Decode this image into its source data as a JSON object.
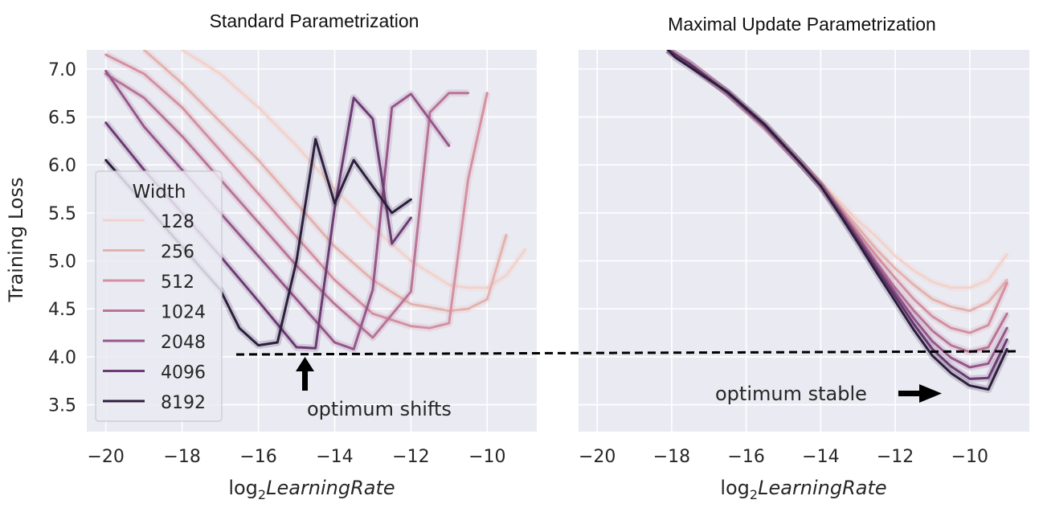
{
  "chart_data": [
    {
      "type": "line",
      "title": "Standard Parametrization",
      "xlabel_prefix": "log",
      "xlabel_sub": "2",
      "xlabel_main": "LearningRate",
      "ylabel": "Training Loss",
      "xlim": [
        -20.5,
        -8.7
      ],
      "ylim": [
        3.22,
        7.2
      ],
      "xticks": [
        -20,
        -18,
        -16,
        -14,
        -12,
        -10
      ],
      "xtick_labels": [
        "−20",
        "−18",
        "−16",
        "−14",
        "−12",
        "−10"
      ],
      "yticks": [
        3.5,
        4.0,
        4.5,
        5.0,
        5.5,
        6.0,
        6.5,
        7.0
      ],
      "ytick_labels": [
        "3.5",
        "4.0",
        "4.5",
        "5.0",
        "5.5",
        "6.0",
        "6.5",
        "7.0"
      ],
      "legend": {
        "title": "Width",
        "location": "lower-left"
      },
      "series": [
        {
          "name": "128",
          "color": "#f2d3cb",
          "x": [
            -18,
            -17,
            -16,
            -15,
            -14,
            -13,
            -12,
            -11,
            -10.5,
            -10,
            -9.5,
            -9
          ],
          "y": [
            7.2,
            6.95,
            6.6,
            6.2,
            5.75,
            5.35,
            5.0,
            4.75,
            4.72,
            4.72,
            4.85,
            5.12
          ]
        },
        {
          "name": "256",
          "color": "#e4b2ae",
          "x": [
            -19,
            -18,
            -17,
            -16,
            -15,
            -14,
            -13,
            -12,
            -11,
            -10.5,
            -10,
            -9.5
          ],
          "y": [
            7.2,
            6.85,
            6.45,
            6.05,
            5.6,
            5.15,
            4.8,
            4.55,
            4.48,
            4.5,
            4.6,
            5.27
          ]
        },
        {
          "name": "512",
          "color": "#d490a1",
          "x": [
            -20,
            -19,
            -18,
            -17,
            -16,
            -15,
            -14,
            -13,
            -12,
            -11.5,
            -11,
            -10.5,
            -10
          ],
          "y": [
            7.15,
            6.95,
            6.6,
            6.15,
            5.7,
            5.25,
            4.8,
            4.45,
            4.32,
            4.3,
            4.35,
            5.85,
            6.75
          ]
        },
        {
          "name": "1024",
          "color": "#b97496",
          "x": [
            -20,
            -19,
            -18,
            -17,
            -16,
            -15,
            -14,
            -13,
            -12,
            -11.5,
            -11,
            -10.5
          ],
          "y": [
            6.95,
            6.7,
            6.3,
            5.85,
            5.4,
            4.95,
            4.55,
            4.2,
            4.68,
            6.55,
            6.75,
            6.75
          ]
        },
        {
          "name": "2048",
          "color": "#96578a",
          "x": [
            -20,
            -19,
            -18,
            -17,
            -16,
            -15,
            -14,
            -13.5,
            -13,
            -12.5,
            -12,
            -11
          ],
          "y": [
            6.98,
            6.4,
            5.95,
            5.5,
            5.05,
            4.6,
            4.15,
            4.08,
            4.7,
            6.6,
            6.74,
            6.2
          ]
        },
        {
          "name": "4096",
          "color": "#6c3b73",
          "x": [
            -20,
            -19,
            -18,
            -17,
            -16,
            -15,
            -14.5,
            -14,
            -13.5,
            -13,
            -12.5,
            -12
          ],
          "y": [
            6.44,
            5.95,
            5.5,
            5.05,
            4.58,
            4.1,
            4.09,
            5.55,
            6.7,
            6.48,
            5.18,
            5.45
          ]
        },
        {
          "name": "8192",
          "color": "#2d1e3e",
          "x": [
            -20,
            -19,
            -18,
            -17,
            -16.5,
            -16,
            -15.5,
            -15,
            -14.5,
            -14,
            -13.5,
            -12.5,
            -12
          ],
          "y": [
            6.05,
            5.6,
            5.15,
            4.7,
            4.3,
            4.12,
            4.15,
            5.0,
            6.27,
            5.6,
            6.05,
            5.5,
            5.64
          ]
        }
      ]
    },
    {
      "type": "line",
      "title": "Maximal Update Parametrization",
      "xlabel_prefix": "log",
      "xlabel_sub": "2",
      "xlabel_main": "LearningRate",
      "xlim": [
        -20.5,
        -8.4
      ],
      "ylim": [
        3.22,
        7.2
      ],
      "xticks": [
        -20,
        -18,
        -16,
        -14,
        -12,
        -10
      ],
      "xtick_labels": [
        "−20",
        "−18",
        "−16",
        "−14",
        "−12",
        "−10"
      ],
      "series": [
        {
          "name": "128",
          "color": "#f2d3cb",
          "x": [
            -18.1,
            -17.5,
            -16.5,
            -15.5,
            -14.5,
            -14,
            -13.5,
            -13,
            -12.5,
            -12,
            -11.5,
            -11,
            -10.5,
            -10,
            -9.5,
            -9
          ],
          "y": [
            7.2,
            7.05,
            6.75,
            6.4,
            6.0,
            5.82,
            5.62,
            5.42,
            5.25,
            5.05,
            4.9,
            4.78,
            4.72,
            4.72,
            4.8,
            5.07
          ]
        },
        {
          "name": "256",
          "color": "#e4b2ae",
          "x": [
            -18.1,
            -17.5,
            -16.5,
            -15.5,
            -14.5,
            -14,
            -13.5,
            -13,
            -12.5,
            -12,
            -11.5,
            -11,
            -10.5,
            -10,
            -9.5,
            -9
          ],
          "y": [
            7.2,
            7.05,
            6.75,
            6.4,
            6.0,
            5.8,
            5.58,
            5.35,
            5.12,
            4.92,
            4.75,
            4.6,
            4.52,
            4.48,
            4.57,
            4.8
          ]
        },
        {
          "name": "512",
          "color": "#d490a1",
          "x": [
            -18.1,
            -17.5,
            -16.5,
            -15.5,
            -14.5,
            -14,
            -13.5,
            -13,
            -12.5,
            -12,
            -11.5,
            -11,
            -10.5,
            -10,
            -9.5,
            -9
          ],
          "y": [
            7.2,
            7.05,
            6.75,
            6.4,
            6.0,
            5.79,
            5.55,
            5.3,
            5.05,
            4.82,
            4.6,
            4.42,
            4.3,
            4.25,
            4.33,
            4.77
          ]
        },
        {
          "name": "1024",
          "color": "#b97496",
          "x": [
            -18.1,
            -17.5,
            -16.5,
            -15.5,
            -14.5,
            -14,
            -13.5,
            -13,
            -12.5,
            -12,
            -11.5,
            -11,
            -10.5,
            -10,
            -9.5,
            -9
          ],
          "y": [
            7.2,
            7.05,
            6.75,
            6.4,
            6.0,
            5.79,
            5.53,
            5.26,
            4.98,
            4.72,
            4.48,
            4.27,
            4.12,
            4.05,
            4.1,
            4.45
          ]
        },
        {
          "name": "2048",
          "color": "#96578a",
          "x": [
            -18.1,
            -17.5,
            -16.5,
            -15.5,
            -14.5,
            -14,
            -13.5,
            -13,
            -12.5,
            -12,
            -11.5,
            -11,
            -10.5,
            -10,
            -9.5,
            -9
          ],
          "y": [
            7.2,
            7.05,
            6.75,
            6.4,
            6.0,
            5.78,
            5.52,
            5.24,
            4.95,
            4.67,
            4.4,
            4.16,
            3.99,
            3.89,
            3.93,
            4.3
          ]
        },
        {
          "name": "4096",
          "color": "#6c3b73",
          "x": [
            -18.1,
            -17.5,
            -16.5,
            -15.5,
            -14.5,
            -14,
            -13.5,
            -13,
            -12.5,
            -12,
            -11.5,
            -11,
            -10.5,
            -10,
            -9.5,
            -9
          ],
          "y": [
            7.2,
            7.05,
            6.75,
            6.42,
            6.0,
            5.78,
            5.5,
            5.21,
            4.92,
            4.63,
            4.34,
            4.08,
            3.9,
            3.77,
            3.78,
            4.18
          ]
        },
        {
          "name": "8192",
          "color": "#2d1e3e",
          "x": [
            -18.1,
            -17.9,
            -16.5,
            -15.5,
            -14.5,
            -14,
            -13.5,
            -13,
            -12.5,
            -12,
            -11.5,
            -11,
            -10.5,
            -10,
            -9.5,
            -9
          ],
          "y": [
            7.2,
            7.12,
            6.76,
            6.42,
            6.0,
            5.78,
            5.49,
            5.19,
            4.88,
            4.58,
            4.28,
            4.01,
            3.83,
            3.7,
            3.66,
            4.08
          ]
        }
      ]
    }
  ],
  "annotations": {
    "left": "optimum shifts",
    "right": "optimum stable"
  },
  "reference_line": {
    "y": 4.02,
    "style": "dashed",
    "color": "#000000"
  }
}
